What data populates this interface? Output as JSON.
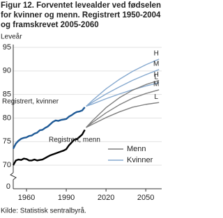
{
  "chart_data": {
    "type": "line",
    "title_lines": [
      "Figur 12. Forventet levealder ved fødselen",
      "for kvinner og menn. Registrert 1950-2004",
      "og framskrevet 2005-2060"
    ],
    "y_label": "Leveår",
    "axis_break_label": "0",
    "source": "Kilde:  Statistisk sentralbyrå.",
    "xlim": [
      1950,
      2062
    ],
    "xticks": [
      1960,
      1990,
      2020,
      2050
    ],
    "ylim": [
      65,
      95
    ],
    "yticks": [
      70,
      75,
      80,
      85,
      90,
      95
    ],
    "grid": true,
    "legend": [
      {
        "name": "Menn",
        "color": "#7f7f7f"
      },
      {
        "name": "Kvinner",
        "color": "#86a9cf"
      }
    ],
    "series": [
      {
        "label": "Registrert, kvinner",
        "color": "#1f5a96",
        "width": 2.4,
        "x": [
          1950,
          1952,
          1954,
          1956,
          1958,
          1960,
          1962,
          1964,
          1966,
          1968,
          1970,
          1972,
          1974,
          1976,
          1978,
          1980,
          1982,
          1984,
          1986,
          1988,
          1990,
          1992,
          1994,
          1996,
          1998,
          2000,
          2002,
          2004
        ],
        "values": [
          73.5,
          74.6,
          75.2,
          75.6,
          75.8,
          75.9,
          76.2,
          76.3,
          76.7,
          76.9,
          77.4,
          77.5,
          77.9,
          78.2,
          78.7,
          79.2,
          79.5,
          79.4,
          79.6,
          79.7,
          79.8,
          80.3,
          80.6,
          81.0,
          81.3,
          81.4,
          81.6,
          82.3
        ]
      },
      {
        "label": "Registrert, menn",
        "color": "#000000",
        "width": 2.4,
        "x": [
          1950,
          1952,
          1954,
          1956,
          1958,
          1960,
          1962,
          1964,
          1966,
          1968,
          1970,
          1972,
          1974,
          1976,
          1978,
          1980,
          1982,
          1984,
          1986,
          1988,
          1990,
          1992,
          1994,
          1996,
          1998,
          2000,
          2002,
          2004
        ],
        "values": [
          70.0,
          71.0,
          71.2,
          71.1,
          71.4,
          71.3,
          71.0,
          71.0,
          71.2,
          71.0,
          71.1,
          71.2,
          71.5,
          71.8,
          72.1,
          72.3,
          72.5,
          72.7,
          72.9,
          73.1,
          73.4,
          74.2,
          74.8,
          75.4,
          75.5,
          76.0,
          76.5,
          77.5
        ]
      },
      {
        "group": "Kvinner",
        "label": "H",
        "color": "#86a9cf",
        "width": 1.4,
        "x": [
          2005,
          2010,
          2020,
          2030,
          2040,
          2050,
          2060
        ],
        "values": [
          82.5,
          83.8,
          86.2,
          88.2,
          89.9,
          91.3,
          92.5
        ]
      },
      {
        "group": "Kvinner",
        "label": "M",
        "color": "#86a9cf",
        "width": 1.4,
        "x": [
          2005,
          2010,
          2020,
          2030,
          2040,
          2050,
          2060
        ],
        "values": [
          82.5,
          83.4,
          85.1,
          86.6,
          88.0,
          89.2,
          90.3
        ]
      },
      {
        "group": "Kvinner",
        "label": "L",
        "color": "#86a9cf",
        "width": 1.4,
        "x": [
          2005,
          2010,
          2020,
          2030,
          2040,
          2050,
          2060
        ],
        "values": [
          82.5,
          83.0,
          84.1,
          85.1,
          86.0,
          86.8,
          87.5
        ]
      },
      {
        "group": "Menn",
        "label": "H",
        "color": "#7f7f7f",
        "width": 1.4,
        "x": [
          2005,
          2010,
          2020,
          2030,
          2040,
          2050,
          2060
        ],
        "values": [
          78.0,
          79.5,
          82.2,
          84.3,
          85.9,
          87.1,
          88.0
        ]
      },
      {
        "group": "Menn",
        "label": "M",
        "color": "#7f7f7f",
        "width": 1.4,
        "x": [
          2005,
          2010,
          2020,
          2030,
          2040,
          2050,
          2060
        ],
        "values": [
          78.0,
          79.1,
          81.1,
          82.8,
          84.2,
          85.2,
          86.0
        ]
      },
      {
        "group": "Menn",
        "label": "L",
        "color": "#7f7f7f",
        "width": 1.4,
        "x": [
          2005,
          2010,
          2020,
          2030,
          2040,
          2050,
          2060
        ],
        "values": [
          78.0,
          78.7,
          80.1,
          81.3,
          82.3,
          82.9,
          83.3
        ]
      }
    ]
  }
}
